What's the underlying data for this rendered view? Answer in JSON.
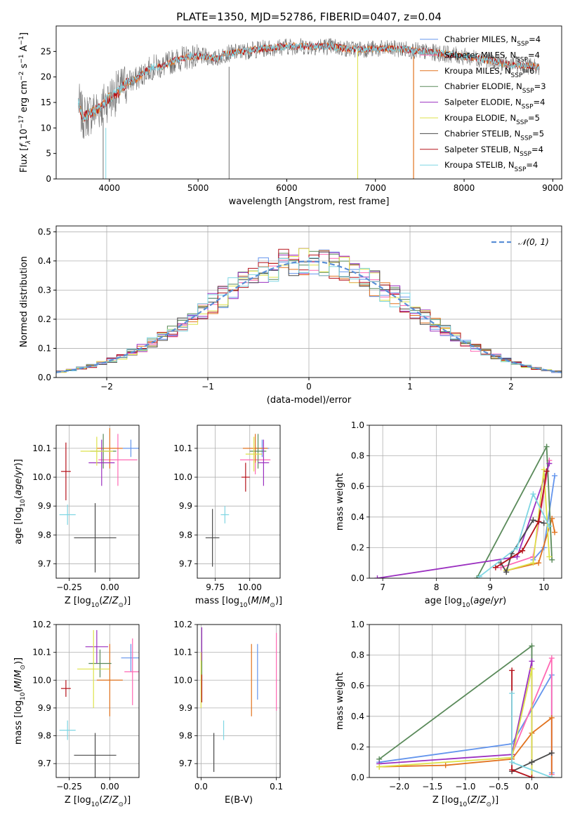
{
  "colors": {
    "chabrier_miles": "#6495ed",
    "salpeter_miles": "#ff69b4",
    "kroupa_miles": "#e2731e",
    "chabrier_elodie": "#5a8a5a",
    "salpeter_elodie": "#9b30c0",
    "kroupa_elodie": "#dde24a",
    "chabrier_stelib": "#4a4a4a",
    "salpeter_stelib": "#b5121b",
    "kroupa_stelib": "#7fd6e3",
    "gaussian": "#5b8fd6",
    "grid": "#b0b0b0"
  },
  "chart_data": [
    {
      "id": "spectrum",
      "type": "line",
      "title": "PLATE=1350, MJD=52786, FIBERID=0407, z=0.04",
      "xlabel": "wavelength [Angstrom, rest frame]",
      "ylabel_main": "Flux [",
      "ylabel_sub": "f",
      "ylabel_tail": "10",
      "xlim": [
        3400,
        9100
      ],
      "ylim": [
        0,
        30
      ],
      "xticks": [
        "4000",
        "5000",
        "6000",
        "7000",
        "8000",
        "9000"
      ],
      "yticks": [
        "0",
        "5",
        "10",
        "15",
        "20",
        "25"
      ],
      "grid": false,
      "legend_position": "upper-right",
      "legend": [
        {
          "lib": "Chabrier MILES",
          "n": "4",
          "color_key": "chabrier_miles"
        },
        {
          "lib": "Salpeter MILES",
          "n": "4",
          "color_key": "salpeter_miles"
        },
        {
          "lib": "Kroupa MILES",
          "n": "6",
          "color_key": "kroupa_miles"
        },
        {
          "lib": "Chabrier ELODIE",
          "n": "3",
          "color_key": "chabrier_elodie"
        },
        {
          "lib": "Salpeter ELODIE",
          "n": "4",
          "color_key": "salpeter_elodie"
        },
        {
          "lib": "Kroupa ELODIE",
          "n": "5",
          "color_key": "kroupa_elodie"
        },
        {
          "lib": "Chabrier STELIB",
          "n": "5",
          "color_key": "chabrier_stelib"
        },
        {
          "lib": "Salpeter STELIB",
          "n": "4",
          "color_key": "salpeter_stelib"
        },
        {
          "lib": "Kroupa STELIB",
          "n": "4",
          "color_key": "kroupa_stelib"
        }
      ],
      "continuum": [
        [
          3650,
          15
        ],
        [
          3700,
          12
        ],
        [
          3800,
          13
        ],
        [
          3900,
          14
        ],
        [
          4000,
          16
        ],
        [
          4100,
          17
        ],
        [
          4200,
          19
        ],
        [
          4300,
          19.5
        ],
        [
          4400,
          21
        ],
        [
          4500,
          22
        ],
        [
          4600,
          22
        ],
        [
          4700,
          23
        ],
        [
          4800,
          23.5
        ],
        [
          4900,
          24
        ],
        [
          5000,
          24
        ],
        [
          5100,
          24
        ],
        [
          5200,
          23.5
        ],
        [
          5300,
          24.5
        ],
        [
          5500,
          25
        ],
        [
          5700,
          25.5
        ],
        [
          6000,
          26
        ],
        [
          6300,
          26
        ],
        [
          6500,
          26
        ],
        [
          6700,
          25.5
        ],
        [
          7000,
          25.5
        ],
        [
          7300,
          25.5
        ],
        [
          7500,
          25
        ],
        [
          7800,
          24.5
        ],
        [
          8000,
          24
        ],
        [
          8200,
          23.5
        ],
        [
          8500,
          22.5
        ],
        [
          8800,
          22
        ]
      ]
    },
    {
      "id": "residuals",
      "type": "step-histogram",
      "xlabel": "(data-model)/error",
      "ylabel": "Normed distribution",
      "xlim": [
        -2.5,
        2.5
      ],
      "ylim": [
        0,
        0.52
      ],
      "xticks": [
        "−2",
        "−1",
        "0",
        "1",
        "2"
      ],
      "yticks": [
        "0.0",
        "0.1",
        "0.2",
        "0.3",
        "0.4",
        "0.5"
      ],
      "grid": true,
      "legend_position": "upper-right",
      "legend_label": "𝒩(0, 1)",
      "bin_width": 0.1,
      "gaussian": {
        "mu": 0,
        "sigma": 1
      }
    },
    {
      "id": "age-vs-z",
      "type": "errorbar",
      "xlabel": "Z [log",
      "ylabel": "age  [log",
      "xlim": [
        -0.33,
        0.18
      ],
      "ylim": [
        9.65,
        10.18
      ],
      "xticks": [
        "−0.25",
        "0.00"
      ],
      "xtick_values": [
        -0.25,
        0.0
      ],
      "yticks": [
        "9.7",
        "9.8",
        "9.9",
        "10.0",
        "10.1"
      ],
      "ytick_values": [
        9.7,
        9.8,
        9.9,
        10.0,
        10.1
      ],
      "grid": true,
      "points": [
        {
          "c": "chabrier_miles",
          "x": 0.13,
          "xe": 0.05,
          "y": 10.1,
          "ye": 0.03
        },
        {
          "c": "salpeter_miles",
          "x": 0.05,
          "xe": 0.12,
          "y": 10.06,
          "ye": 0.09
        },
        {
          "c": "kroupa_miles",
          "x": 0.0,
          "xe": 0.08,
          "y": 10.1,
          "ye": 0.07
        },
        {
          "c": "chabrier_elodie",
          "x": -0.04,
          "xe": 0.08,
          "y": 10.09,
          "ye": 0.06
        },
        {
          "c": "salpeter_elodie",
          "x": -0.05,
          "xe": 0.08,
          "y": 10.05,
          "ye": 0.08
        },
        {
          "c": "kroupa_elodie",
          "x": -0.08,
          "xe": 0.1,
          "y": 10.09,
          "ye": 0.05
        },
        {
          "c": "chabrier_stelib",
          "x": -0.09,
          "xe": 0.13,
          "y": 9.79,
          "ye": 0.12
        },
        {
          "c": "salpeter_stelib",
          "x": -0.27,
          "xe": 0.03,
          "y": 10.02,
          "ye": 0.1
        },
        {
          "c": "kroupa_stelib",
          "x": -0.26,
          "xe": 0.05,
          "y": 9.87,
          "ye": 0.035
        }
      ]
    },
    {
      "id": "age-vs-mass",
      "type": "errorbar",
      "xlabel": "mass [log",
      "xlim": [
        9.62,
        10.22
      ],
      "ylim": [
        9.65,
        10.18
      ],
      "xticks": [
        "9.75",
        "10.00"
      ],
      "xtick_values": [
        9.75,
        10.0
      ],
      "yticks": [
        "9.7",
        "9.8",
        "9.9",
        "10.0",
        "10.1"
      ],
      "ytick_values": [
        9.7,
        9.8,
        9.9,
        10.0,
        10.1
      ],
      "grid": true,
      "points": [
        {
          "c": "chabrier_miles",
          "x": 10.09,
          "xe": 0.05,
          "y": 10.1,
          "ye": 0.03
        },
        {
          "c": "salpeter_miles",
          "x": 10.04,
          "xe": 0.11,
          "y": 10.06,
          "ye": 0.05
        },
        {
          "c": "kroupa_miles",
          "x": 10.04,
          "xe": 0.09,
          "y": 10.1,
          "ye": 0.05
        },
        {
          "c": "chabrier_elodie",
          "x": 10.06,
          "xe": 0.06,
          "y": 10.09,
          "ye": 0.06
        },
        {
          "c": "salpeter_elodie",
          "x": 10.1,
          "xe": 0.04,
          "y": 10.05,
          "ye": 0.08
        },
        {
          "c": "kroupa_elodie",
          "x": 10.03,
          "xe": 0.06,
          "y": 10.08,
          "ye": 0.06
        },
        {
          "c": "chabrier_stelib",
          "x": 9.73,
          "xe": 0.05,
          "y": 9.79,
          "ye": 0.1
        },
        {
          "c": "salpeter_stelib",
          "x": 9.97,
          "xe": 0.03,
          "y": 10.0,
          "ye": 0.05
        },
        {
          "c": "kroupa_stelib",
          "x": 9.82,
          "xe": 0.03,
          "y": 9.87,
          "ye": 0.03
        }
      ]
    },
    {
      "id": "weight-vs-age",
      "type": "line",
      "xlabel": "age  [log",
      "ylabel": "mass weight",
      "xlim": [
        6.75,
        10.33
      ],
      "ylim": [
        0,
        1.0
      ],
      "xticks": [
        "7",
        "8",
        "9",
        "10"
      ],
      "xtick_values": [
        7,
        8,
        9,
        10
      ],
      "yticks": [
        "0.0",
        "0.2",
        "0.4",
        "0.6",
        "0.8",
        "1.0"
      ],
      "ytick_values": [
        0,
        0.2,
        0.4,
        0.6,
        0.8,
        1.0
      ],
      "grid": true,
      "series": [
        {
          "c": "chabrier_miles",
          "pts": [
            [
              9.8,
              0.12
            ],
            [
              10.0,
              0.2
            ],
            [
              10.2,
              0.67
            ]
          ]
        },
        {
          "c": "salpeter_miles",
          "pts": [
            [
              9.2,
              0.07
            ],
            [
              9.8,
              0.14
            ],
            [
              10.1,
              0.77
            ]
          ]
        },
        {
          "c": "kroupa_miles",
          "pts": [
            [
              9.3,
              0.05
            ],
            [
              9.9,
              0.1
            ],
            [
              10.15,
              0.39
            ],
            [
              10.2,
              0.3
            ]
          ]
        },
        {
          "c": "chabrier_elodie",
          "pts": [
            [
              8.75,
              0.0
            ],
            [
              10.05,
              0.86
            ],
            [
              10.15,
              0.12
            ]
          ]
        },
        {
          "c": "salpeter_elodie",
          "pts": [
            [
              6.9,
              0.0
            ],
            [
              9.5,
              0.14
            ],
            [
              10.1,
              0.75
            ]
          ]
        },
        {
          "c": "kroupa_elodie",
          "pts": [
            [
              9.3,
              0.05
            ],
            [
              9.8,
              0.1
            ],
            [
              10.0,
              0.71
            ],
            [
              10.1,
              0.14
            ]
          ]
        },
        {
          "c": "chabrier_stelib",
          "pts": [
            [
              9.2,
              0.1
            ],
            [
              9.3,
              0.04
            ],
            [
              9.4,
              0.16
            ],
            [
              9.8,
              0.38
            ],
            [
              10.0,
              0.36
            ]
          ]
        },
        {
          "c": "salpeter_stelib",
          "pts": [
            [
              9.1,
              0.07
            ],
            [
              9.6,
              0.18
            ],
            [
              9.9,
              0.37
            ],
            [
              10.05,
              0.7
            ]
          ]
        },
        {
          "c": "kroupa_stelib",
          "pts": [
            [
              8.8,
              0.01
            ],
            [
              9.5,
              0.2
            ],
            [
              9.8,
              0.55
            ],
            [
              10.1,
              0.34
            ]
          ]
        }
      ]
    },
    {
      "id": "mass-vs-z",
      "type": "errorbar",
      "xlabel": "Z [log",
      "ylabel": "mass [log",
      "xlim": [
        -0.33,
        0.18
      ],
      "ylim": [
        9.65,
        10.2
      ],
      "xticks": [
        "−0.25",
        "0.00"
      ],
      "xtick_values": [
        -0.25,
        0.0
      ],
      "yticks": [
        "9.7",
        "9.8",
        "9.9",
        "10.0",
        "10.1",
        "10.2"
      ],
      "ytick_values": [
        9.7,
        9.8,
        9.9,
        10.0,
        10.1,
        10.2
      ],
      "grid": true,
      "points": [
        {
          "c": "chabrier_miles",
          "x": 0.13,
          "xe": 0.06,
          "y": 10.08,
          "ye": 0.05
        },
        {
          "c": "salpeter_miles",
          "x": 0.14,
          "xe": 0.05,
          "y": 10.03,
          "ye": 0.12
        },
        {
          "c": "kroupa_miles",
          "x": 0.0,
          "xe": 0.08,
          "y": 10.0,
          "ye": 0.13
        },
        {
          "c": "chabrier_elodie",
          "x": -0.06,
          "xe": 0.07,
          "y": 10.06,
          "ye": 0.05
        },
        {
          "c": "salpeter_elodie",
          "x": -0.08,
          "xe": 0.07,
          "y": 10.12,
          "ye": 0.06
        },
        {
          "c": "kroupa_elodie",
          "x": -0.1,
          "xe": 0.1,
          "y": 10.04,
          "ye": 0.14
        },
        {
          "c": "chabrier_stelib",
          "x": -0.09,
          "xe": 0.13,
          "y": 9.73,
          "ye": 0.08
        },
        {
          "c": "salpeter_stelib",
          "x": -0.27,
          "xe": 0.03,
          "y": 9.97,
          "ye": 0.03
        },
        {
          "c": "kroupa_stelib",
          "x": -0.26,
          "xe": 0.05,
          "y": 9.82,
          "ye": 0.035
        }
      ]
    },
    {
      "id": "mass-vs-ebv",
      "type": "errorbar",
      "xlabel": "E(B-V)",
      "xlim": [
        -0.005,
        0.105
      ],
      "ylim": [
        9.65,
        10.2
      ],
      "xticks": [
        "0.0",
        "0.1"
      ],
      "xtick_values": [
        0.0,
        0.1
      ],
      "yticks": [
        "9.7",
        "9.8",
        "9.9",
        "10.0",
        "10.1",
        "10.2"
      ],
      "ytick_values": [
        9.7,
        9.8,
        9.9,
        10.0,
        10.1,
        10.2
      ],
      "grid": true,
      "points": [
        {
          "c": "chabrier_miles",
          "x": 0.075,
          "xe": 0,
          "y": 10.03,
          "ye": 0.1
        },
        {
          "c": "salpeter_miles",
          "x": 0.1,
          "xe": 0,
          "y": 10.03,
          "ye": 0.14
        },
        {
          "c": "kroupa_miles",
          "x": 0.067,
          "xe": 0,
          "y": 10.0,
          "ye": 0.13
        },
        {
          "c": "chabrier_elodie",
          "x": 0.001,
          "xe": 0,
          "y": 10.05,
          "ye": 0.05
        },
        {
          "c": "salpeter_elodie",
          "x": 0.001,
          "xe": 0,
          "y": 10.13,
          "ye": 0.06
        },
        {
          "c": "kroupa_elodie",
          "x": 0.0,
          "xe": 0,
          "y": 10.0,
          "ye": 0.1
        },
        {
          "c": "chabrier_stelib",
          "x": 0.017,
          "xe": 0,
          "y": 9.74,
          "ye": 0.07
        },
        {
          "c": "salpeter_stelib",
          "x": 0.001,
          "xe": 0,
          "y": 9.97,
          "ye": 0.05
        },
        {
          "c": "kroupa_stelib",
          "x": 0.03,
          "xe": 0,
          "y": 9.82,
          "ye": 0.035
        }
      ]
    },
    {
      "id": "weight-vs-z",
      "type": "line",
      "xlabel": "Z [log",
      "ylabel": "mass weight",
      "xlim": [
        -2.45,
        0.45
      ],
      "ylim": [
        0,
        1.0
      ],
      "xticks": [
        "−2.0",
        "−1.5",
        "−1.0",
        "−0.5",
        "0.0"
      ],
      "xtick_values": [
        -2.0,
        -1.5,
        -1.0,
        -0.5,
        0.0
      ],
      "yticks": [
        "0.0",
        "0.2",
        "0.4",
        "0.6",
        "0.8",
        "1.0"
      ],
      "ytick_values": [
        0,
        0.2,
        0.4,
        0.6,
        0.8,
        1.0
      ],
      "grid": true,
      "series": [
        {
          "c": "chabrier_miles",
          "pts": [
            [
              -2.3,
              0.1
            ],
            [
              -0.3,
              0.22
            ],
            [
              0.3,
              0.67
            ],
            [
              0.3,
              0.03
            ]
          ]
        },
        {
          "c": "salpeter_miles",
          "pts": [
            [
              -0.3,
              0.15
            ],
            [
              0.3,
              0.78
            ],
            [
              0.3,
              0.02
            ]
          ]
        },
        {
          "c": "kroupa_miles",
          "pts": [
            [
              -2.3,
              0.07
            ],
            [
              -1.3,
              0.08
            ],
            [
              -0.3,
              0.12
            ],
            [
              0.0,
              0.29
            ],
            [
              0.3,
              0.39
            ],
            [
              0.3,
              0.0
            ]
          ]
        },
        {
          "c": "chabrier_elodie",
          "pts": [
            [
              -2.3,
              0.12
            ],
            [
              0.0,
              0.86
            ],
            [
              0.0,
              0.0
            ]
          ]
        },
        {
          "c": "salpeter_elodie",
          "pts": [
            [
              -2.3,
              0.09
            ],
            [
              -0.3,
              0.15
            ],
            [
              0.0,
              0.76
            ],
            [
              0.0,
              0.0
            ]
          ]
        },
        {
          "c": "kroupa_elodie",
          "pts": [
            [
              -2.3,
              0.07
            ],
            [
              -0.3,
              0.13
            ],
            [
              0.0,
              0.71
            ],
            [
              0.0,
              0.0
            ]
          ]
        },
        {
          "c": "chabrier_stelib",
          "pts": [
            [
              -0.3,
              0.04
            ],
            [
              0.0,
              0.1
            ],
            [
              0.3,
              0.16
            ]
          ]
        },
        {
          "c": "salpeter_stelib",
          "pts": [
            [
              -0.3,
              0.7
            ],
            [
              -0.3,
              0.05
            ],
            [
              0.0,
              0.0
            ]
          ]
        },
        {
          "c": "kroupa_stelib",
          "pts": [
            [
              -0.3,
              0.55
            ],
            [
              -0.3,
              0.1
            ],
            [
              0.3,
              0.0
            ]
          ]
        }
      ]
    }
  ]
}
